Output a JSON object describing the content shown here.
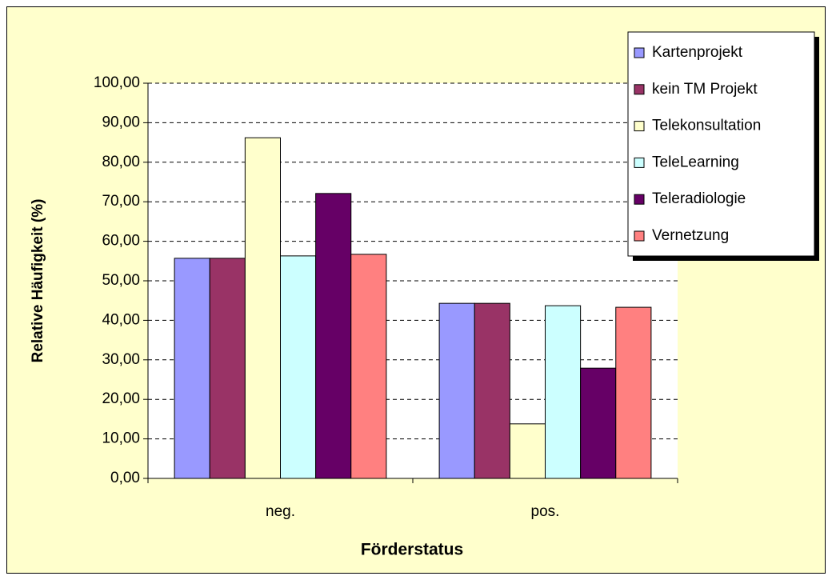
{
  "chart_data": {
    "type": "bar",
    "xlabel": "Förderstatus",
    "ylabel": "Relative Häufigkeit (%)",
    "categories": [
      "neg.",
      "pos."
    ],
    "series": [
      {
        "name": "Kartenprojekt",
        "color": "#9999ff",
        "values": [
          55.7,
          44.3
        ]
      },
      {
        "name": "kein TM Projekt",
        "color": "#993366",
        "values": [
          55.7,
          44.3
        ]
      },
      {
        "name": "Telekonsultation",
        "color": "#ffffcc",
        "values": [
          86.2,
          13.8
        ]
      },
      {
        "name": "TeleLearning",
        "color": "#ccffff",
        "values": [
          56.3,
          43.7
        ]
      },
      {
        "name": "Teleradiologie",
        "color": "#660066",
        "values": [
          72.1,
          27.9
        ]
      },
      {
        "name": "Vernetzung",
        "color": "#ff8080",
        "values": [
          56.7,
          43.3
        ]
      }
    ],
    "ylim": [
      0,
      100
    ],
    "yticks": [
      {
        "value": 0,
        "label": "0,00"
      },
      {
        "value": 10,
        "label": "10,00"
      },
      {
        "value": 20,
        "label": "20,00"
      },
      {
        "value": 30,
        "label": "30,00"
      },
      {
        "value": 40,
        "label": "40,00"
      },
      {
        "value": 50,
        "label": "50,00"
      },
      {
        "value": 60,
        "label": "60,00"
      },
      {
        "value": 70,
        "label": "70,00"
      },
      {
        "value": 80,
        "label": "80,00"
      },
      {
        "value": 90,
        "label": "90,00"
      },
      {
        "value": 100,
        "label": "100,00"
      }
    ],
    "grid": true,
    "legend": "upper right"
  }
}
